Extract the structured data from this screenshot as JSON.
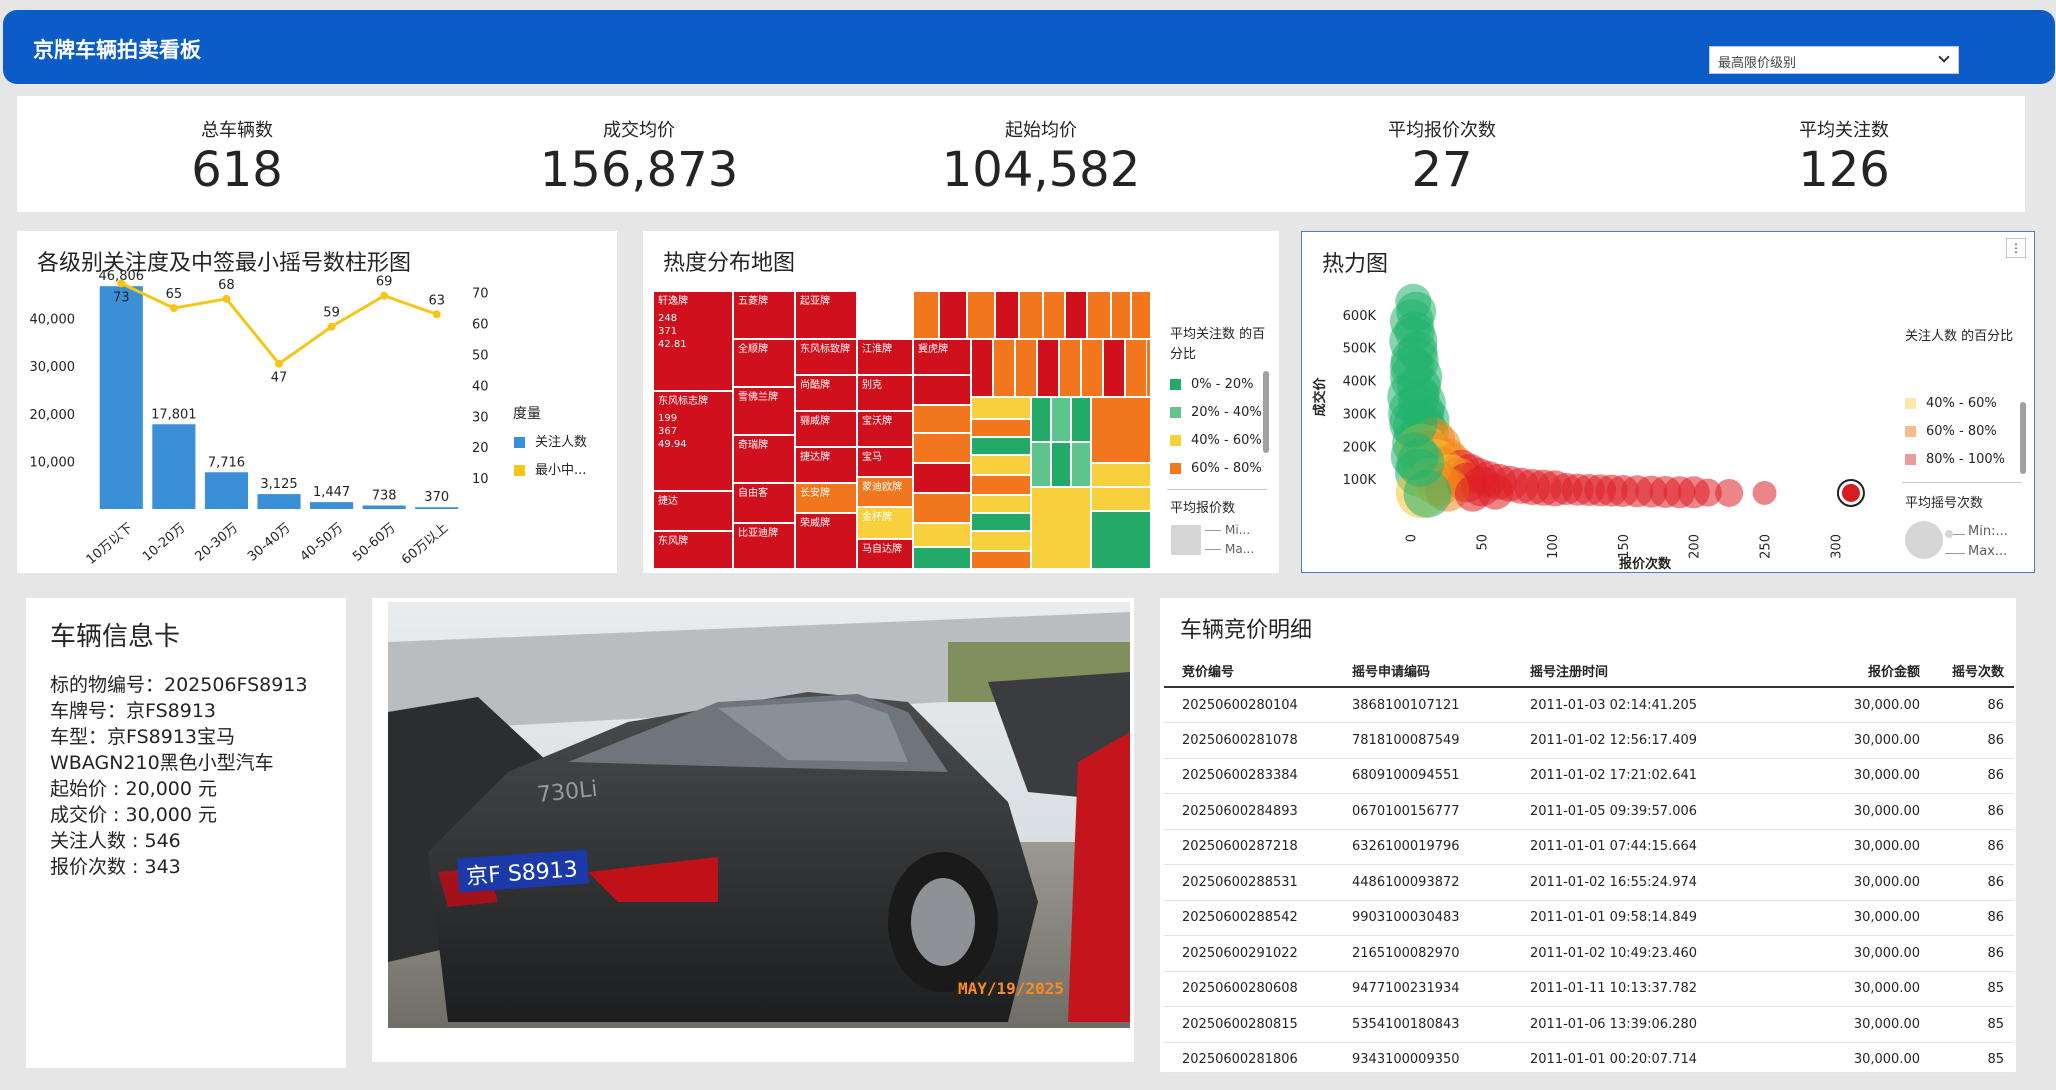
{
  "header": {
    "title": "京牌车辆拍卖看板",
    "slicer_value": "最高限价级别"
  },
  "kpis": [
    {
      "label": "总车辆数",
      "value": "618"
    },
    {
      "label": "成交均价",
      "value": "156,873"
    },
    {
      "label": "起始均价",
      "value": "104,582"
    },
    {
      "label": "平均报价次数",
      "value": "27"
    },
    {
      "label": "平均关注数",
      "value": "126"
    }
  ],
  "bar_card": {
    "title": "各级别关注度及中签最小摇号数柱形图",
    "legend_title": "度量",
    "legend": [
      "关注人数",
      "最小中..."
    ]
  },
  "treemap_card": {
    "title": "热度分布地图",
    "legend_title": "平均关注数 的百分比",
    "legend": [
      "0% - 20%",
      "20% - 40%",
      "40% - 60%",
      "60% - 80%"
    ],
    "size_legend_title": "平均报价数",
    "size_legend": [
      "Mi...",
      "Ma..."
    ],
    "tiles": [
      {
        "name": "轩逸牌",
        "lines": [
          "248",
          "371",
          "42.81"
        ]
      },
      {
        "name": "五菱牌"
      },
      {
        "name": "起亚牌"
      },
      {
        "name": "全顺牌"
      },
      {
        "name": "东风标致牌"
      },
      {
        "name": "江淮牌"
      },
      {
        "name": "冀虎牌"
      },
      {
        "name": "东风标志牌",
        "lines": [
          "199",
          "367",
          "49.94"
        ]
      },
      {
        "name": "别克"
      },
      {
        "name": "雪佛兰牌"
      },
      {
        "name": "尚酷牌"
      },
      {
        "name": "宝沃牌"
      },
      {
        "name": "骊威牌"
      },
      {
        "name": "奇瑞牌"
      },
      {
        "name": "宝马"
      },
      {
        "name": "捷达牌"
      },
      {
        "name": "捷达"
      },
      {
        "name": "蒙迪欧牌"
      },
      {
        "name": "自由客"
      },
      {
        "name": "长安牌"
      },
      {
        "name": "金杯牌"
      },
      {
        "name": "东风牌"
      },
      {
        "name": "比亚迪牌"
      },
      {
        "name": "荣威牌"
      },
      {
        "name": "马自达牌"
      }
    ]
  },
  "heat_card": {
    "title": "热力图",
    "legend_title": "关注人数 的百分比",
    "legend": [
      "40% - 60%",
      "60% - 80%",
      "80% - 100%"
    ],
    "size_legend_title": "平均摇号次数",
    "size_legend": [
      "Min:...",
      "Max..."
    ]
  },
  "info_card": {
    "title": "车辆信息卡",
    "lines": [
      "标的物编号：202506FS8913",
      "车牌号：京FS8913",
      "车型：京FS8913宝马",
      "WBAGN210黑色小型汽车",
      "起始价 : 20,000  元",
      "成交价 : 30,000  元",
      "关注人数 : 546",
      "报价次数 : 343"
    ]
  },
  "photo": {
    "plate_text": "京F S8913",
    "model_badge": "730Li",
    "date_stamp": "MAY/19/2025"
  },
  "detail_card": {
    "title": "车辆竞价明细",
    "columns": [
      "竞价编号",
      "摇号申请编码",
      "摇号注册时间",
      "报价金额",
      "摇号次数"
    ],
    "rows": [
      [
        "20250600280104",
        "3868100107121",
        "2011-01-03 02:14:41.205",
        "30,000.00",
        "86"
      ],
      [
        "20250600281078",
        "7818100087549",
        "2011-01-02 12:56:17.409",
        "30,000.00",
        "86"
      ],
      [
        "20250600283384",
        "6809100094551",
        "2011-01-02 17:21:02.641",
        "30,000.00",
        "86"
      ],
      [
        "20250600284893",
        "0670100156777",
        "2011-01-05 09:39:57.006",
        "30,000.00",
        "86"
      ],
      [
        "20250600287218",
        "6326100019796",
        "2011-01-01 07:44:15.664",
        "30,000.00",
        "86"
      ],
      [
        "20250600288531",
        "4486100093872",
        "2011-01-02 16:55:24.974",
        "30,000.00",
        "86"
      ],
      [
        "20250600288542",
        "9903100030483",
        "2011-01-01 09:58:14.849",
        "30,000.00",
        "86"
      ],
      [
        "20250600291022",
        "2165100082970",
        "2011-01-02 10:49:23.460",
        "30,000.00",
        "86"
      ],
      [
        "20250600280608",
        "9477100231934",
        "2011-01-11 10:13:37.782",
        "30,000.00",
        "85"
      ],
      [
        "20250600280815",
        "5354100180843",
        "2011-01-06 13:39:06.280",
        "30,000.00",
        "85"
      ],
      [
        "20250600281806",
        "9343100009350",
        "2011-01-01 00:20:07.714",
        "30,000.00",
        "85"
      ]
    ]
  },
  "colors": {
    "header": "#0b5cc6",
    "bar": "#3a8fd7",
    "line": "#f5c518",
    "red": "#d1101e",
    "orange": "#f2761d",
    "yellow": "#f8cf3c",
    "green": "#23a968"
  },
  "chart_data": [
    {
      "type": "bar",
      "categories": [
        "10万以下",
        "10-20万",
        "20-30万",
        "30-40万",
        "40-50万",
        "50-60万",
        "60万以上"
      ],
      "series": [
        {
          "name": "关注人数",
          "type": "bar",
          "values": [
            46806,
            17801,
            7716,
            3125,
            1447,
            738,
            370
          ],
          "labels": [
            "46,806",
            "17,801",
            "7,716",
            "3,125",
            "1,447",
            "738",
            "370"
          ]
        },
        {
          "name": "最小中...",
          "type": "line",
          "axis": "right",
          "values": [
            73,
            65,
            68,
            47,
            59,
            69,
            63
          ]
        }
      ],
      "yticks": [
        "10,000",
        "20,000",
        "30,000",
        "40,000"
      ],
      "ylim": [
        0,
        50000
      ],
      "y2ticks": [
        "10",
        "20",
        "30",
        "40",
        "50",
        "60",
        "70"
      ],
      "y2lim": [
        0,
        77
      ],
      "legend_position": "right"
    },
    {
      "type": "scatter",
      "xlabel": "报价次数",
      "ylabel": "成交价",
      "xticks": [
        "0",
        "50",
        "100",
        "150",
        "200",
        "250",
        "300"
      ],
      "xlim": [
        -6,
        340
      ],
      "yticks": [
        "100K",
        "200K",
        "300K",
        "400K",
        "500K",
        "600K"
      ],
      "ylim": [
        0,
        700000
      ],
      "legend_position": "right",
      "points": [
        [
          2,
          640000,
          18,
          "g"
        ],
        [
          4,
          610000,
          20,
          "g"
        ],
        [
          1,
          580000,
          22,
          "g"
        ],
        [
          3,
          550000,
          20,
          "g"
        ],
        [
          2,
          520000,
          24,
          "g"
        ],
        [
          5,
          490000,
          20,
          "g"
        ],
        [
          3,
          460000,
          24,
          "g"
        ],
        [
          1,
          440000,
          22,
          "g"
        ],
        [
          4,
          410000,
          26,
          "g"
        ],
        [
          6,
          380000,
          22,
          "g"
        ],
        [
          2,
          350000,
          26,
          "g"
        ],
        [
          8,
          330000,
          24,
          "g"
        ],
        [
          4,
          300000,
          28,
          "g"
        ],
        [
          12,
          280000,
          22,
          "g"
        ],
        [
          6,
          260000,
          26,
          "g"
        ],
        [
          10,
          240000,
          24,
          "g"
        ],
        [
          16,
          220000,
          22,
          "o"
        ],
        [
          4,
          210000,
          24,
          "g"
        ],
        [
          20,
          200000,
          22,
          "o"
        ],
        [
          8,
          190000,
          26,
          "y"
        ],
        [
          14,
          175000,
          24,
          "o"
        ],
        [
          26,
          165000,
          20,
          "o"
        ],
        [
          18,
          155000,
          22,
          "y"
        ],
        [
          30,
          148000,
          20,
          "o"
        ],
        [
          10,
          140000,
          24,
          "y"
        ],
        [
          36,
          135000,
          18,
          "r"
        ],
        [
          22,
          130000,
          22,
          "o"
        ],
        [
          42,
          122000,
          18,
          "r"
        ],
        [
          6,
          120000,
          24,
          "g"
        ],
        [
          28,
          115000,
          20,
          "y"
        ],
        [
          48,
          110000,
          18,
          "r"
        ],
        [
          34,
          105000,
          20,
          "o"
        ],
        [
          55,
          100000,
          18,
          "r"
        ],
        [
          14,
          98000,
          22,
          "y"
        ],
        [
          62,
          92000,
          18,
          "r"
        ],
        [
          40,
          90000,
          20,
          "r"
        ],
        [
          70,
          86000,
          18,
          "r"
        ],
        [
          20,
          84000,
          22,
          "o"
        ],
        [
          78,
          80000,
          18,
          "r"
        ],
        [
          50,
          78000,
          20,
          "r"
        ],
        [
          86,
          76000,
          18,
          "r"
        ],
        [
          94,
          74000,
          18,
          "r"
        ],
        [
          102,
          72000,
          18,
          "r"
        ],
        [
          110,
          70000,
          16,
          "r"
        ],
        [
          118,
          68000,
          16,
          "r"
        ],
        [
          126,
          67000,
          16,
          "r"
        ],
        [
          134,
          66000,
          16,
          "r"
        ],
        [
          142,
          65000,
          16,
          "r"
        ],
        [
          150,
          64000,
          16,
          "r"
        ],
        [
          160,
          63000,
          16,
          "r"
        ],
        [
          170,
          62000,
          16,
          "r"
        ],
        [
          180,
          61000,
          16,
          "r"
        ],
        [
          190,
          60000,
          16,
          "r"
        ],
        [
          200,
          60000,
          16,
          "r"
        ],
        [
          210,
          59000,
          14,
          "r"
        ],
        [
          225,
          58000,
          14,
          "r"
        ],
        [
          250,
          58000,
          12,
          "r"
        ],
        [
          8,
          60000,
          26,
          "y"
        ],
        [
          26,
          68000,
          22,
          "o"
        ],
        [
          60,
          62000,
          18,
          "r"
        ],
        [
          12,
          56000,
          24,
          "g"
        ],
        [
          44,
          56000,
          18,
          "r"
        ],
        [
          2,
          270000,
          24,
          "g"
        ],
        [
          3,
          170000,
          24,
          "g"
        ],
        [
          7,
          150000,
          24,
          "g"
        ],
        [
          311,
          58000,
          11,
          "s"
        ]
      ]
    }
  ]
}
